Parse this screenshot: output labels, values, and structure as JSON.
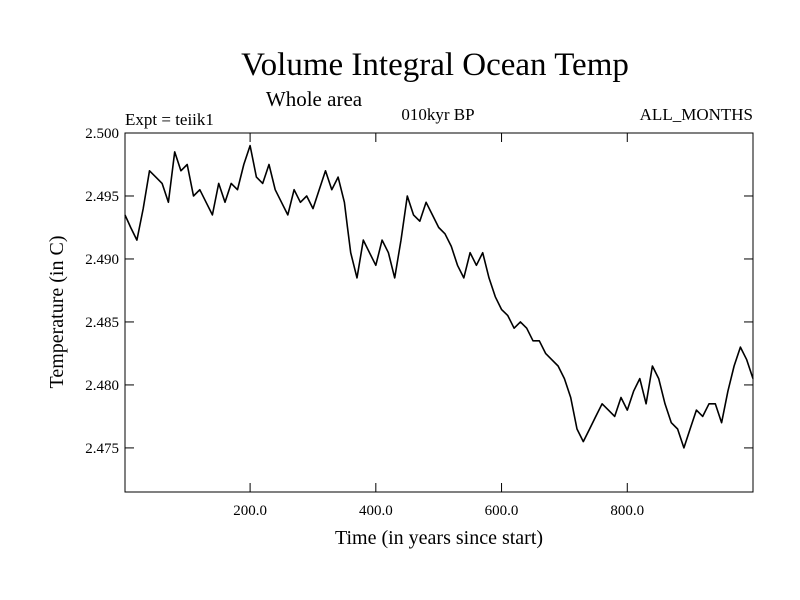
{
  "chart_data": {
    "type": "line",
    "title": "Volume Integral Ocean Temp",
    "subtitle": "Whole area",
    "annotation_left": "Expt = teiik1",
    "annotation_center": "010kyr BP",
    "annotation_right": "ALL_MONTHS",
    "xlabel": "Time (in years since start)",
    "ylabel": "Temperature (in C)",
    "xlim": [
      1,
      1000
    ],
    "ylim": [
      2.4715,
      2.5
    ],
    "x_ticks": [
      200,
      400,
      600,
      800
    ],
    "x_tick_labels": [
      "200.0",
      "400.0",
      "600.0",
      "800.0"
    ],
    "y_ticks": [
      2.475,
      2.48,
      2.485,
      2.49,
      2.495,
      2.5
    ],
    "y_tick_labels": [
      "2.475",
      "2.480",
      "2.485",
      "2.490",
      "2.495",
      "2.500"
    ],
    "grid": false,
    "series": [
      {
        "x": [
          1,
          10,
          20,
          30,
          40,
          50,
          60,
          70,
          80,
          90,
          100,
          110,
          120,
          130,
          140,
          150,
          160,
          170,
          180,
          190,
          200,
          210,
          220,
          230,
          240,
          250,
          260,
          270,
          280,
          290,
          300,
          310,
          320,
          330,
          340,
          350,
          355,
          360,
          370,
          380,
          390,
          400,
          410,
          420,
          430,
          440,
          450,
          460,
          470,
          480,
          490,
          500,
          510,
          520,
          530,
          540,
          550,
          560,
          570,
          580,
          590,
          600,
          610,
          620,
          630,
          640,
          650,
          660,
          670,
          680,
          690,
          700,
          710,
          720,
          730,
          740,
          750,
          760,
          770,
          780,
          790,
          800,
          810,
          820,
          830,
          840,
          850,
          860,
          870,
          880,
          890,
          900,
          910,
          920,
          930,
          940,
          950,
          960,
          970,
          980,
          990,
          1000
        ],
        "y": [
          2.4935,
          2.4925,
          2.4915,
          2.494,
          2.497,
          2.4965,
          2.496,
          2.4945,
          2.4985,
          2.497,
          2.4975,
          2.495,
          2.4955,
          2.4945,
          2.4935,
          2.496,
          2.4945,
          2.496,
          2.4955,
          2.4975,
          2.499,
          2.4965,
          2.496,
          2.4975,
          2.4955,
          2.4945,
          2.4935,
          2.4955,
          2.4945,
          2.495,
          2.494,
          2.4955,
          2.497,
          2.4955,
          2.4965,
          2.4945,
          2.4925,
          2.4905,
          2.4885,
          2.4915,
          2.4905,
          2.4895,
          2.4915,
          2.4905,
          2.4885,
          2.4915,
          2.495,
          2.4935,
          2.493,
          2.4945,
          2.4935,
          2.4925,
          2.492,
          2.491,
          2.4895,
          2.4885,
          2.4905,
          2.4895,
          2.4905,
          2.4885,
          2.487,
          2.486,
          2.4855,
          2.4845,
          2.485,
          2.4845,
          2.4835,
          2.4835,
          2.4825,
          2.482,
          2.4815,
          2.4805,
          2.479,
          2.4765,
          2.4755,
          2.4765,
          2.4775,
          2.4785,
          2.478,
          2.4775,
          2.479,
          2.478,
          2.4795,
          2.4805,
          2.4785,
          2.4815,
          2.4805,
          2.4785,
          2.477,
          2.4765,
          2.475,
          2.4765,
          2.478,
          2.4775,
          2.4785,
          2.4785,
          2.477,
          2.4795,
          2.4815,
          2.483,
          2.482,
          2.4805
        ]
      }
    ]
  }
}
